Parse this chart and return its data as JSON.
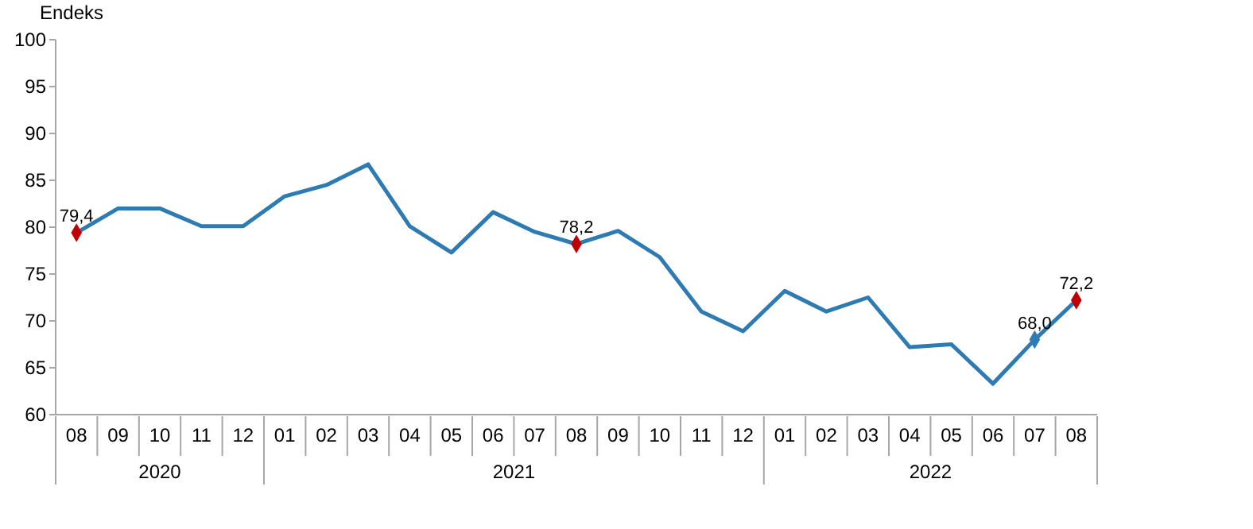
{
  "chart_data": {
    "type": "line",
    "ylabel": "Endeks",
    "categories": [
      "08",
      "09",
      "10",
      "11",
      "12",
      "01",
      "02",
      "03",
      "04",
      "05",
      "06",
      "07",
      "08",
      "09",
      "10",
      "11",
      "12",
      "01",
      "02",
      "03",
      "04",
      "05",
      "06",
      "07",
      "08"
    ],
    "series": [
      {
        "color": "#2e7bb4",
        "values": [
          79.4,
          82.0,
          82.0,
          80.1,
          80.1,
          83.3,
          84.5,
          86.7,
          80.1,
          77.3,
          81.6,
          79.5,
          78.2,
          79.6,
          76.8,
          71.0,
          68.9,
          73.2,
          71.0,
          72.5,
          67.2,
          67.5,
          63.3,
          68.0,
          72.2
        ],
        "value_labels": [
          "79,4",
          null,
          null,
          null,
          null,
          null,
          null,
          null,
          null,
          null,
          null,
          null,
          "78,2",
          null,
          null,
          null,
          null,
          null,
          null,
          null,
          null,
          null,
          null,
          "68,0",
          "72,2"
        ],
        "colors": [
          "#c00000",
          null,
          null,
          null,
          null,
          null,
          null,
          null,
          null,
          null,
          null,
          null,
          "#c00000",
          null,
          null,
          null,
          null,
          null,
          null,
          null,
          null,
          null,
          null,
          "#2e7bb4",
          "#c00000"
        ]
      }
    ],
    "annotations": [
      "2020",
      "2021",
      "2022"
    ],
    "ylim": [
      60,
      100
    ],
    "yticks": [
      60,
      65,
      70,
      75,
      80,
      85,
      90,
      95,
      100
    ],
    "line_style": "solid",
    "grid": false
  }
}
